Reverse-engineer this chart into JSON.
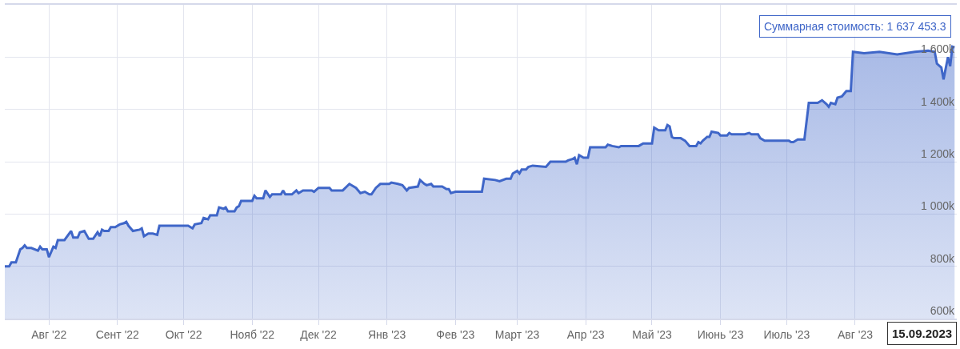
{
  "chart_data": {
    "type": "area",
    "x": [
      "2022-07-12",
      "2022-07-14",
      "2022-07-15",
      "2022-07-17",
      "2022-07-19",
      "2022-07-20",
      "2022-07-21",
      "2022-07-22",
      "2022-07-24",
      "2022-07-27",
      "2022-07-28",
      "2022-07-29",
      "2022-07-31",
      "2022-08-01",
      "2022-08-03",
      "2022-08-04",
      "2022-08-05",
      "2022-08-08",
      "2022-08-11",
      "2022-08-12",
      "2022-08-14",
      "2022-08-15",
      "2022-08-17",
      "2022-08-19",
      "2022-08-21",
      "2022-08-23",
      "2022-08-24",
      "2022-08-25",
      "2022-08-26",
      "2022-08-28",
      "2022-08-29",
      "2022-08-31",
      "2022-09-02",
      "2022-09-04",
      "2022-09-05",
      "2022-09-06",
      "2022-09-08",
      "2022-09-11",
      "2022-09-12",
      "2022-09-13",
      "2022-09-15",
      "2022-09-17",
      "2022-09-19",
      "2022-09-20",
      "2022-10-03",
      "2022-10-05",
      "2022-10-06",
      "2022-10-09",
      "2022-10-10",
      "2022-10-12",
      "2022-10-13",
      "2022-10-16",
      "2022-10-17",
      "2022-10-19",
      "2022-10-20",
      "2022-10-21",
      "2022-10-24",
      "2022-10-25",
      "2022-10-26",
      "2022-10-27",
      "2022-11-01",
      "2022-11-02",
      "2022-11-03",
      "2022-11-06",
      "2022-11-07",
      "2022-11-09",
      "2022-11-10",
      "2022-11-14",
      "2022-11-15",
      "2022-11-16",
      "2022-11-19",
      "2022-11-21",
      "2022-11-22",
      "2022-11-24",
      "2022-11-28",
      "2022-11-29",
      "2022-12-01",
      "2022-12-06",
      "2022-12-07",
      "2022-12-12",
      "2022-12-15",
      "2022-12-18",
      "2022-12-20",
      "2022-12-22",
      "2022-12-24",
      "2022-12-25",
      "2022-12-27",
      "2022-12-29",
      "2023-01-02",
      "2023-01-03",
      "2023-01-06",
      "2023-01-08",
      "2023-01-10",
      "2023-01-11",
      "2023-01-15",
      "2023-01-16",
      "2023-01-18",
      "2023-01-19",
      "2023-01-21",
      "2023-01-22",
      "2023-01-26",
      "2023-01-28",
      "2023-01-29",
      "2023-01-30",
      "2023-02-01",
      "2023-02-07",
      "2023-02-13",
      "2023-02-14",
      "2023-02-19",
      "2023-02-21",
      "2023-02-24",
      "2023-02-26",
      "2023-02-27",
      "2023-03-01",
      "2023-03-02",
      "2023-03-03",
      "2023-03-05",
      "2023-03-06",
      "2023-03-08",
      "2023-03-14",
      "2023-03-16",
      "2023-03-23",
      "2023-03-24",
      "2023-03-26",
      "2023-03-27",
      "2023-03-28",
      "2023-03-29",
      "2023-03-31",
      "2023-04-02",
      "2023-04-03",
      "2023-04-10",
      "2023-04-11",
      "2023-04-13",
      "2023-04-16",
      "2023-04-17",
      "2023-04-25",
      "2023-04-27",
      "2023-05-01",
      "2023-05-02",
      "2023-05-04",
      "2023-05-07",
      "2023-05-08",
      "2023-05-09",
      "2023-05-10",
      "2023-05-11",
      "2023-05-14",
      "2023-05-15",
      "2023-05-16",
      "2023-05-18",
      "2023-05-21",
      "2023-05-22",
      "2023-05-23",
      "2023-05-24",
      "2023-05-26",
      "2023-05-27",
      "2023-05-28",
      "2023-05-31",
      "2023-06-01",
      "2023-06-04",
      "2023-06-05",
      "2023-06-06",
      "2023-06-12",
      "2023-06-14",
      "2023-06-15",
      "2023-06-18",
      "2023-06-19",
      "2023-06-21",
      "2023-07-02",
      "2023-07-03",
      "2023-07-04",
      "2023-07-06",
      "2023-07-09",
      "2023-07-11",
      "2023-07-15",
      "2023-07-17",
      "2023-07-19",
      "2023-07-20",
      "2023-07-21",
      "2023-07-23",
      "2023-07-24",
      "2023-07-26",
      "2023-07-28",
      "2023-07-30",
      "2023-07-31",
      "2023-08-05",
      "2023-08-12",
      "2023-08-20",
      "2023-08-28",
      "2023-09-03",
      "2023-09-06",
      "2023-09-07",
      "2023-09-09",
      "2023-09-10",
      "2023-09-12",
      "2023-09-13",
      "2023-09-14",
      "2023-09-15"
    ],
    "series": [
      {
        "color": "#3f66c8",
        "values": [
          800000,
          800000,
          815000,
          815000,
          865000,
          870000,
          880000,
          870000,
          870000,
          860000,
          875000,
          865000,
          865000,
          835000,
          875000,
          870000,
          900000,
          900000,
          935000,
          910000,
          910000,
          930000,
          935000,
          905000,
          905000,
          930000,
          915000,
          940000,
          935000,
          935000,
          950000,
          950000,
          960000,
          965000,
          970000,
          955000,
          935000,
          940000,
          945000,
          915000,
          925000,
          925000,
          920000,
          955000,
          955000,
          945000,
          960000,
          965000,
          985000,
          980000,
          995000,
          995000,
          1025000,
          1020000,
          1025000,
          1010000,
          1010000,
          1025000,
          1030000,
          1050000,
          1050000,
          1070000,
          1060000,
          1060000,
          1090000,
          1065000,
          1075000,
          1075000,
          1090000,
          1075000,
          1075000,
          1090000,
          1080000,
          1090000,
          1090000,
          1085000,
          1100000,
          1100000,
          1090000,
          1090000,
          1115000,
          1100000,
          1080000,
          1085000,
          1075000,
          1075000,
          1100000,
          1115000,
          1115000,
          1120000,
          1115000,
          1110000,
          1090000,
          1100000,
          1105000,
          1130000,
          1115000,
          1110000,
          1115000,
          1105000,
          1105000,
          1095000,
          1095000,
          1080000,
          1085000,
          1085000,
          1085000,
          1135000,
          1130000,
          1125000,
          1135000,
          1135000,
          1155000,
          1165000,
          1155000,
          1170000,
          1170000,
          1180000,
          1185000,
          1180000,
          1200000,
          1200000,
          1205000,
          1210000,
          1215000,
          1190000,
          1225000,
          1215000,
          1215000,
          1255000,
          1255000,
          1265000,
          1260000,
          1255000,
          1260000,
          1260000,
          1270000,
          1270000,
          1330000,
          1320000,
          1320000,
          1340000,
          1335000,
          1295000,
          1290000,
          1290000,
          1285000,
          1280000,
          1260000,
          1260000,
          1275000,
          1270000,
          1280000,
          1295000,
          1295000,
          1315000,
          1310000,
          1300000,
          1300000,
          1310000,
          1305000,
          1305000,
          1310000,
          1305000,
          1305000,
          1290000,
          1280000,
          1280000,
          1275000,
          1275000,
          1285000,
          1285000,
          1425000,
          1425000,
          1435000,
          1420000,
          1410000,
          1425000,
          1420000,
          1445000,
          1450000,
          1470000,
          1470000,
          1620000,
          1615000,
          1620000,
          1610000,
          1620000,
          1625000,
          1620000,
          1575000,
          1560000,
          1515000,
          1600000,
          1565000,
          1640000,
          1637453.3
        ]
      }
    ],
    "xlim": [
      "2022-07-12",
      "2023-09-16"
    ],
    "xticks": [
      {
        "value": "2022-08-01",
        "label": "Авг '22"
      },
      {
        "value": "2022-09-01",
        "label": "Сент '22"
      },
      {
        "value": "2022-10-01",
        "label": "Окт '22"
      },
      {
        "value": "2022-11-01",
        "label": "Нояб '22"
      },
      {
        "value": "2022-12-01",
        "label": "Дек '22"
      },
      {
        "value": "2023-01-01",
        "label": "Янв '23"
      },
      {
        "value": "2023-02-01",
        "label": "Фев '23"
      },
      {
        "value": "2023-03-01",
        "label": "Март '23"
      },
      {
        "value": "2023-04-01",
        "label": "Апр '23"
      },
      {
        "value": "2023-05-01",
        "label": "Май '23"
      },
      {
        "value": "2023-06-01",
        "label": "Июнь '23"
      },
      {
        "value": "2023-07-01",
        "label": "Июль '23"
      },
      {
        "value": "2023-08-01",
        "label": "Авг '23"
      }
    ],
    "ylim": [
      600000,
      1800000
    ],
    "yticks": [
      {
        "value": 600000,
        "label": "600k"
      },
      {
        "value": 800000,
        "label": "800k"
      },
      {
        "value": 1000000,
        "label": "1 000k"
      },
      {
        "value": 1200000,
        "label": "1 200k"
      },
      {
        "value": 1400000,
        "label": "1 400k"
      },
      {
        "value": 1600000,
        "label": "1 600k"
      }
    ],
    "grid": true,
    "annotations": [
      {
        "text": "Суммарная стоимость: 1 637 453.3",
        "x": "2023-09-15",
        "y": 1637453.3
      },
      "15.09.2023"
    ]
  }
}
